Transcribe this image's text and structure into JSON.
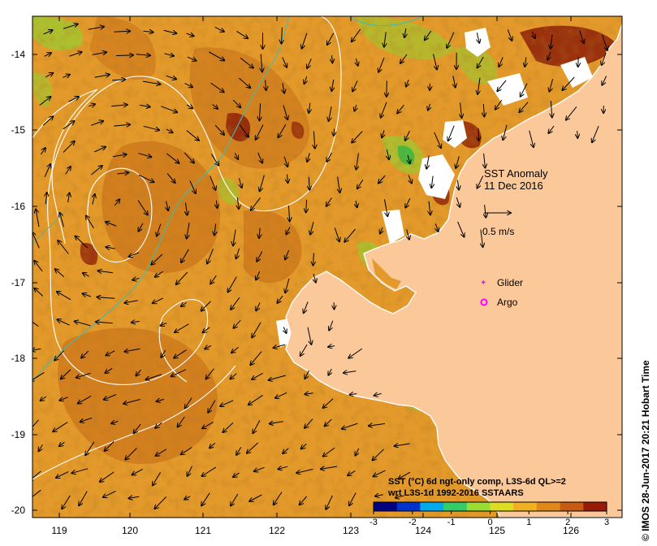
{
  "map": {
    "title_line1": "SST Anomaly",
    "title_line2": "11 Dec 2016",
    "vector_scale_label": "0.5 m/s",
    "credit": "© IMOS 28-Jun-2017 20:21 Hobart Time",
    "lon_ticks": [
      "119",
      "120",
      "121",
      "122",
      "123",
      "124",
      "125",
      "126"
    ],
    "lat_ticks": [
      "-14",
      "-15",
      "-16",
      "-17",
      "-18",
      "-19",
      "-20"
    ],
    "legend": {
      "glider_label": "Glider",
      "argo_label": "Argo",
      "glider_color": "#cc33cc",
      "argo_color": "#ff00ff"
    },
    "colorbar": {
      "caption_line1": "SST (°C) 6d ngt-only comp, L3S-6d QL>=2",
      "caption_line2": "wrt L3S-1d 1992-2016 SSTAARS",
      "tick_labels": [
        "-3",
        "-2",
        "-1",
        "0",
        "1",
        "2",
        "3"
      ],
      "colors": [
        "#000080",
        "#0033cc",
        "#00aaee",
        "#33cc66",
        "#99dd33",
        "#dddd22",
        "#f0b020",
        "#e08818",
        "#c85a12",
        "#9a1a08"
      ]
    },
    "colors": {
      "land": "#fbc89a",
      "ocean_base": "#e39a2a",
      "ocean_warm": "#c46a14",
      "ocean_hot": "#8c1e08",
      "ocean_cool": "#9acc30",
      "ocean_cold": "#33bb44",
      "contour_white": "#ffffff",
      "contour_cyan": "#44bbaa",
      "arrow": "#000000"
    }
  }
}
